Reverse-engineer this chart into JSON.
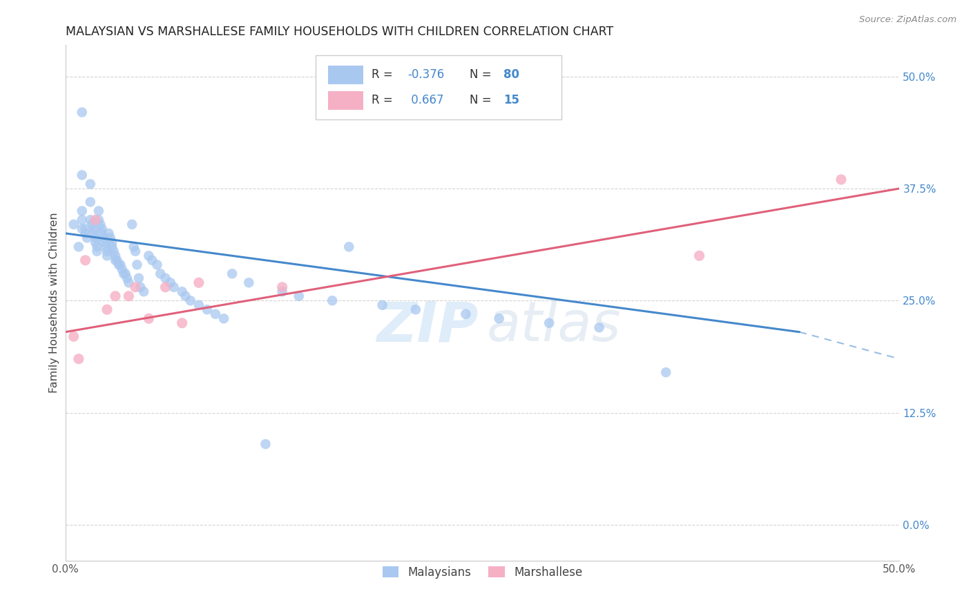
{
  "title": "MALAYSIAN VS MARSHALLESE FAMILY HOUSEHOLDS WITH CHILDREN CORRELATION CHART",
  "source": "Source: ZipAtlas.com",
  "ylabel": "Family Households with Children",
  "xlim": [
    0.0,
    0.5
  ],
  "ylim": [
    -0.04,
    0.535
  ],
  "right_yticks": [
    0.0,
    0.125,
    0.25,
    0.375,
    0.5
  ],
  "right_yticklabels": [
    "0.0%",
    "12.5%",
    "25.0%",
    "37.5%",
    "50.0%"
  ],
  "watermark_zip": "ZIP",
  "watermark_atlas": "atlas",
  "blue_color": "#a8c8f0",
  "pink_color": "#f5b0c5",
  "trend_blue": "#4488cc",
  "trend_pink": "#e0607a",
  "background": "#ffffff",
  "grid_color": "#c8c8c8",
  "malaysians_x": [
    0.005,
    0.008,
    0.01,
    0.01,
    0.01,
    0.01,
    0.01,
    0.012,
    0.012,
    0.013,
    0.015,
    0.015,
    0.015,
    0.016,
    0.017,
    0.017,
    0.018,
    0.018,
    0.019,
    0.019,
    0.02,
    0.02,
    0.021,
    0.022,
    0.022,
    0.023,
    0.023,
    0.024,
    0.025,
    0.025,
    0.026,
    0.027,
    0.028,
    0.028,
    0.029,
    0.03,
    0.03,
    0.031,
    0.032,
    0.033,
    0.034,
    0.035,
    0.036,
    0.037,
    0.038,
    0.04,
    0.041,
    0.042,
    0.043,
    0.044,
    0.045,
    0.047,
    0.05,
    0.052,
    0.055,
    0.057,
    0.06,
    0.063,
    0.065,
    0.07,
    0.072,
    0.075,
    0.08,
    0.085,
    0.09,
    0.095,
    0.1,
    0.11,
    0.12,
    0.13,
    0.14,
    0.16,
    0.17,
    0.19,
    0.21,
    0.24,
    0.26,
    0.29,
    0.32,
    0.36
  ],
  "malaysians_y": [
    0.335,
    0.31,
    0.46,
    0.39,
    0.35,
    0.34,
    0.33,
    0.33,
    0.325,
    0.32,
    0.38,
    0.36,
    0.34,
    0.335,
    0.33,
    0.325,
    0.32,
    0.315,
    0.31,
    0.305,
    0.35,
    0.34,
    0.335,
    0.33,
    0.325,
    0.32,
    0.315,
    0.31,
    0.305,
    0.3,
    0.325,
    0.32,
    0.315,
    0.31,
    0.305,
    0.3,
    0.295,
    0.295,
    0.29,
    0.29,
    0.285,
    0.28,
    0.28,
    0.275,
    0.27,
    0.335,
    0.31,
    0.305,
    0.29,
    0.275,
    0.265,
    0.26,
    0.3,
    0.295,
    0.29,
    0.28,
    0.275,
    0.27,
    0.265,
    0.26,
    0.255,
    0.25,
    0.245,
    0.24,
    0.235,
    0.23,
    0.28,
    0.27,
    0.09,
    0.26,
    0.255,
    0.25,
    0.31,
    0.245,
    0.24,
    0.235,
    0.23,
    0.225,
    0.22,
    0.17
  ],
  "marshallese_x": [
    0.005,
    0.008,
    0.012,
    0.018,
    0.025,
    0.03,
    0.038,
    0.042,
    0.05,
    0.06,
    0.07,
    0.08,
    0.13,
    0.38,
    0.465
  ],
  "marshallese_y": [
    0.21,
    0.185,
    0.295,
    0.34,
    0.24,
    0.255,
    0.255,
    0.265,
    0.23,
    0.265,
    0.225,
    0.27,
    0.265,
    0.3,
    0.385
  ],
  "blue_trend_x0": 0.0,
  "blue_trend_x_solid_end": 0.44,
  "blue_trend_x_dash_end": 0.5,
  "blue_trend_y0": 0.325,
  "blue_trend_y_solid_end": 0.215,
  "blue_trend_y_dash_end": 0.185,
  "pink_trend_x0": 0.0,
  "pink_trend_x1": 0.5,
  "pink_trend_y0": 0.215,
  "pink_trend_y1": 0.375
}
